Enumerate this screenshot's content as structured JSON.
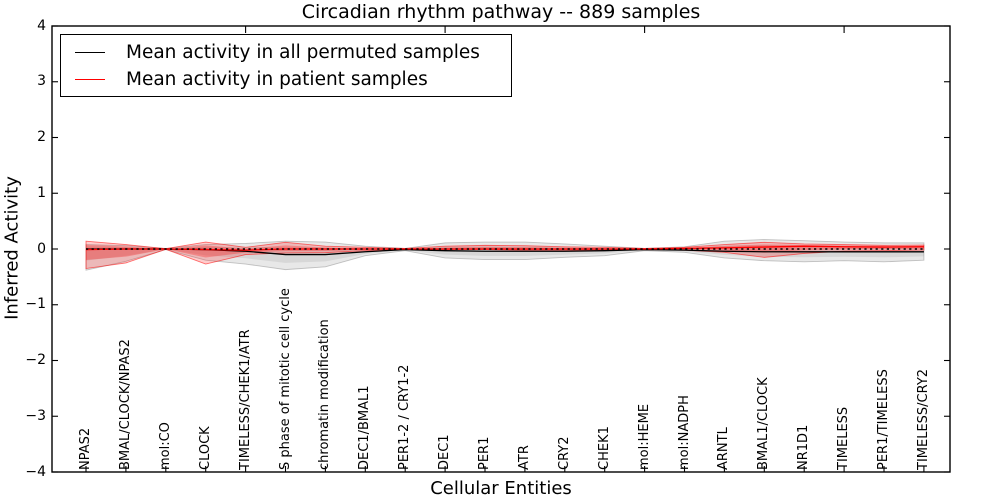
{
  "title": "Circadian rhythm pathway -- 889 samples",
  "legend": {
    "items": [
      {
        "label": "Mean activity in all permuted samples",
        "color": "#000000"
      },
      {
        "label": "Mean activity in patient samples",
        "color": "#ff0000"
      }
    ]
  },
  "axes": {
    "xlabel": "Cellular Entities",
    "ylabel": "Inferred Activity",
    "ytick_labels": [
      "−4",
      "−3",
      "−2",
      "−1",
      "0",
      "1",
      "2",
      "3",
      "4"
    ],
    "ytick_values": [
      -4,
      -3,
      -2,
      -1,
      0,
      1,
      2,
      3,
      4
    ]
  },
  "chart_data": {
    "type": "line",
    "title": "Circadian rhythm pathway -- 889 samples",
    "xlabel": "Cellular Entities",
    "ylabel": "Inferred Activity",
    "ylim": [
      -4,
      4
    ],
    "grid": false,
    "legend_position": "upper left",
    "categories": [
      "NPAS2",
      "BMAL/CLOCK/NPAS2",
      "mol:CO",
      "CLOCK",
      "TIMELESS/CHEK1/ATR",
      "S phase of mitotic cell cycle",
      "chromatin modification",
      "DEC1/BMAL1",
      "PER1-2 / CRY1-2",
      "DEC1",
      "PER1",
      "ATR",
      "CRY2",
      "CHEK1",
      "mol:HEME",
      "mol:NADPH",
      "ARNTL",
      "BMAL1/CLOCK",
      "NR1D1",
      "TIMELESS",
      "PER1/TIMELESS",
      "TIMELESS/CRY2"
    ],
    "series": [
      {
        "name": "Mean activity in all permuted samples",
        "color": "#000000",
        "values": [
          0.0,
          0.0,
          0.0,
          -0.01,
          -0.04,
          -0.1,
          -0.1,
          -0.05,
          -0.01,
          -0.03,
          -0.04,
          -0.04,
          -0.04,
          -0.03,
          -0.01,
          -0.02,
          -0.04,
          -0.05,
          -0.05,
          -0.05,
          -0.05,
          -0.05
        ]
      },
      {
        "name": "Mean activity in patient samples",
        "color": "#ff0000",
        "values": [
          -0.01,
          0.0,
          0.0,
          -0.01,
          -0.02,
          0.0,
          0.0,
          0.0,
          0.0,
          0.0,
          0.0,
          0.0,
          0.0,
          0.0,
          0.0,
          0.01,
          0.02,
          0.035,
          0.05,
          0.04,
          0.035,
          0.04
        ]
      }
    ],
    "bands": [
      {
        "name": "permuted-samples-range",
        "color": "#808080",
        "upper": [
          0.08,
          0.06,
          0.01,
          0.08,
          0.1,
          0.14,
          0.125,
          0.05,
          0.01,
          0.11,
          0.125,
          0.125,
          0.09,
          0.05,
          0.01,
          0.04,
          0.14,
          0.17,
          0.15,
          0.125,
          0.11,
          0.11
        ],
        "lower": [
          -0.38,
          -0.22,
          -0.01,
          -0.2,
          -0.27,
          -0.37,
          -0.32,
          -0.12,
          -0.03,
          -0.16,
          -0.19,
          -0.19,
          -0.15,
          -0.12,
          -0.03,
          -0.06,
          -0.16,
          -0.21,
          -0.23,
          -0.21,
          -0.23,
          -0.2
        ]
      },
      {
        "name": "patient-samples-range",
        "color": "#ff0000",
        "upper": [
          0.14,
          0.08,
          0.005,
          0.125,
          0.03,
          0.12,
          0.05,
          0.03,
          0.01,
          0.05,
          0.065,
          0.06,
          0.04,
          0.03,
          0.01,
          0.03,
          0.08,
          0.12,
          0.09,
          0.08,
          0.065,
          0.07
        ],
        "lower": [
          -0.35,
          -0.25,
          -0.005,
          -0.27,
          -0.1,
          -0.07,
          -0.065,
          -0.03,
          -0.01,
          -0.01,
          -0.01,
          -0.02,
          -0.02,
          -0.02,
          -0.01,
          -0.02,
          -0.06,
          -0.15,
          -0.08,
          -0.04,
          -0.03,
          -0.02
        ]
      }
    ],
    "zero_reference_line": 0,
    "top_tick_entity_indices": [
      4,
      9,
      14,
      19
    ]
  }
}
